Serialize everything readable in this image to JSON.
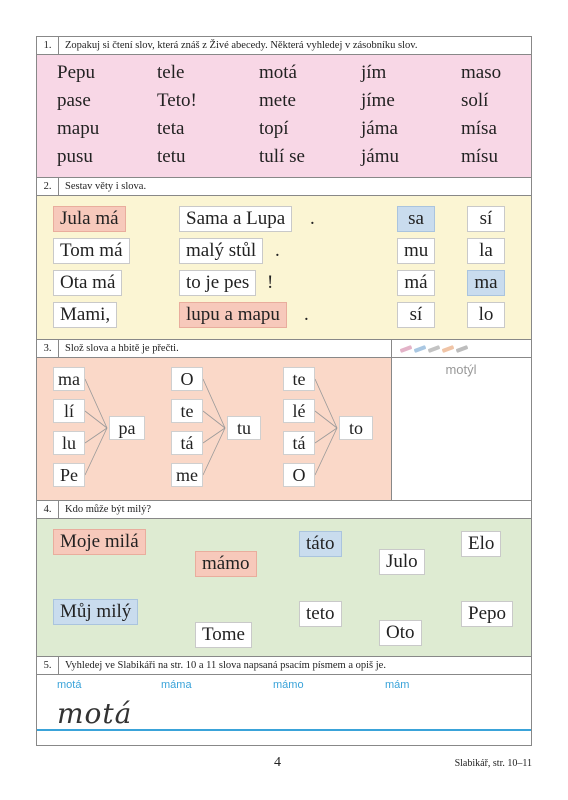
{
  "ex1": {
    "number": "1.",
    "instruction": "Zopakuj si čtení slov, která znáš z Živé abecedy. Některá vyhledej v zásobníku slov.",
    "columns": [
      [
        "Pepu",
        "pase",
        "mapu",
        "pusu"
      ],
      [
        "tele",
        "Teto!",
        "teta",
        "tetu"
      ],
      [
        "motá",
        "mete",
        "topí",
        "tulí se"
      ],
      [
        "jím",
        "jíme",
        "jáma",
        "jámu"
      ],
      [
        "maso",
        "solí",
        "mísa",
        "mísu"
      ]
    ],
    "bg_color": "#f8d7e6"
  },
  "ex2": {
    "number": "2.",
    "instruction": "Sestav věty i slova.",
    "rows": [
      {
        "subject": "Jula má",
        "object": "Sama a Lupa",
        "end": ".",
        "syl1": "sa",
        "syl2": "sí"
      },
      {
        "subject": "Tom má",
        "object": "malý stůl",
        "end": ".",
        "syl1": "mu",
        "syl2": "la"
      },
      {
        "subject": "Ota má",
        "object": "to je pes",
        "end": "!",
        "syl1": "má",
        "syl2": "ma"
      },
      {
        "subject": "Mami,",
        "object": "lupu a mapu",
        "end": ".",
        "syl1": "sí",
        "syl2": "lo"
      }
    ],
    "bg_color": "#fbf5d3"
  },
  "ex3": {
    "number": "3.",
    "instruction": "Slož slova a hbitě je přečti.",
    "group1": {
      "left": [
        "ma",
        "lí",
        "lu",
        "Pe"
      ],
      "right": "pa"
    },
    "group2": {
      "left": [
        "O",
        "te",
        "tá",
        "me"
      ],
      "right": "tu"
    },
    "group3": {
      "left": [
        "te",
        "lé",
        "tá",
        "O"
      ],
      "right": "to"
    },
    "side_word": "motýl",
    "pencil_icons": [
      "pencil-icon",
      "pencil-icon",
      "pencil-icon",
      "pencil-icon",
      "pencil-icon"
    ],
    "bg_color": "#fad8c8"
  },
  "ex4": {
    "number": "4.",
    "instruction": "Kdo může být milý?",
    "words": [
      "Moje milá",
      "mámo",
      "táto",
      "Julo",
      "Elo",
      "Můj milý",
      "Tome",
      "teto",
      "Oto",
      "Pepo"
    ],
    "bg_color": "#deebd2"
  },
  "ex5": {
    "number": "5.",
    "instruction": "Vyhledej ve Slabikáři na str. 10 a 11 slova napsaná psacím písmem a opiš je.",
    "words": [
      "motá",
      "máma",
      "mámo",
      "mám"
    ],
    "handwriting": "motá"
  },
  "footer": {
    "page_number": "4",
    "reference": "Slabikář, str. 10–11"
  }
}
